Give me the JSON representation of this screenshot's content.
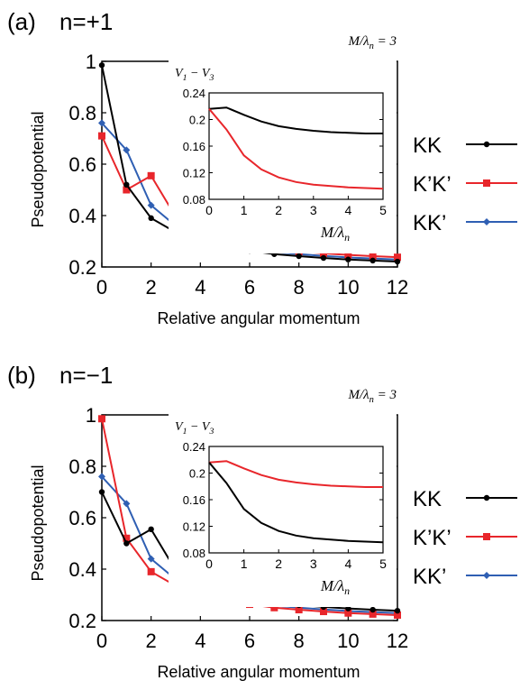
{
  "chart_data": [
    {
      "type": "line",
      "panel_label": "(a)",
      "title": "n=+1",
      "corner_annotation": "M/λ_n = 3",
      "xlabel": "Relative angular momentum",
      "ylabel": "Pseudopotential",
      "xlim": [
        0,
        12
      ],
      "ylim": [
        0.2,
        1.0
      ],
      "xticks": [
        "0",
        "2",
        "4",
        "6",
        "8",
        "10",
        "12"
      ],
      "yticks": [
        "0.2",
        "0.4",
        "0.6",
        "0.8",
        "1"
      ],
      "x": [
        0,
        1,
        2,
        3,
        4,
        5,
        6,
        7,
        8,
        9,
        10,
        11,
        12
      ],
      "series": [
        {
          "name": "KK",
          "color": "#000000",
          "marker": "circle",
          "values": [
            0.985,
            0.52,
            0.39,
            0.335,
            0.3,
            0.278,
            0.263,
            0.25,
            0.242,
            0.235,
            0.229,
            0.225,
            0.221
          ]
        },
        {
          "name": "K’K’",
          "color": "#e8262b",
          "marker": "square",
          "values": [
            0.71,
            0.5,
            0.555,
            0.395,
            0.34,
            0.305,
            0.285,
            0.27,
            0.26,
            0.253,
            0.247,
            0.242,
            0.238
          ]
        },
        {
          "name": "KK’",
          "color": "#2f5fb3",
          "marker": "diamond",
          "values": [
            0.76,
            0.655,
            0.44,
            0.36,
            0.315,
            0.288,
            0.27,
            0.258,
            0.25,
            0.243,
            0.237,
            0.233,
            0.229
          ]
        }
      ],
      "legend_placement": "right",
      "inset": {
        "ylabel": "V_1 − V_3",
        "xlabel": "M/λ_n",
        "xlim": [
          0,
          5
        ],
        "ylim": [
          0.08,
          0.24
        ],
        "xticks": [
          "0",
          "1",
          "2",
          "3",
          "4",
          "5"
        ],
        "yticks": [
          "0.08",
          "0.12",
          "0.16",
          "0.2",
          "0.24"
        ],
        "series": [
          {
            "color": "#000000",
            "points": [
              [
                0,
                0.216
              ],
              [
                0.5,
                0.218
              ],
              [
                1,
                0.207
              ],
              [
                1.5,
                0.197
              ],
              [
                2,
                0.19
              ],
              [
                2.5,
                0.186
              ],
              [
                3,
                0.183
              ],
              [
                3.5,
                0.181
              ],
              [
                4,
                0.18
              ],
              [
                4.5,
                0.179
              ],
              [
                5,
                0.179
              ]
            ]
          },
          {
            "color": "#e8262b",
            "points": [
              [
                0,
                0.216
              ],
              [
                0.5,
                0.185
              ],
              [
                1,
                0.146
              ],
              [
                1.5,
                0.125
              ],
              [
                2,
                0.113
              ],
              [
                2.5,
                0.106
              ],
              [
                3,
                0.102
              ],
              [
                3.5,
                0.1
              ],
              [
                4,
                0.098
              ],
              [
                4.5,
                0.097
              ],
              [
                5,
                0.096
              ]
            ]
          }
        ]
      }
    },
    {
      "type": "line",
      "panel_label": "(b)",
      "title": "n=−1",
      "corner_annotation": "M/λ_n = 3",
      "xlabel": "Relative angular momentum",
      "ylabel": "Pseudopotential",
      "xlim": [
        0,
        12
      ],
      "ylim": [
        0.2,
        1.0
      ],
      "xticks": [
        "0",
        "2",
        "4",
        "6",
        "8",
        "10",
        "12"
      ],
      "yticks": [
        "0.2",
        "0.4",
        "0.6",
        "0.8",
        "1"
      ],
      "x": [
        0,
        1,
        2,
        3,
        4,
        5,
        6,
        7,
        8,
        9,
        10,
        11,
        12
      ],
      "series": [
        {
          "name": "KK",
          "color": "#000000",
          "marker": "circle",
          "values": [
            0.7,
            0.5,
            0.555,
            0.395,
            0.34,
            0.305,
            0.285,
            0.27,
            0.26,
            0.253,
            0.247,
            0.242,
            0.238
          ]
        },
        {
          "name": "K’K’",
          "color": "#e8262b",
          "marker": "square",
          "values": [
            0.985,
            0.52,
            0.39,
            0.335,
            0.3,
            0.278,
            0.263,
            0.25,
            0.242,
            0.235,
            0.229,
            0.225,
            0.221
          ]
        },
        {
          "name": "KK’",
          "color": "#2f5fb3",
          "marker": "diamond",
          "values": [
            0.76,
            0.655,
            0.44,
            0.36,
            0.315,
            0.288,
            0.27,
            0.258,
            0.25,
            0.243,
            0.237,
            0.233,
            0.229
          ]
        }
      ],
      "legend_placement": "right",
      "inset": {
        "ylabel": "V_1 − V_3",
        "xlabel": "M/λ_n",
        "xlim": [
          0,
          5
        ],
        "ylim": [
          0.08,
          0.24
        ],
        "xticks": [
          "0",
          "1",
          "2",
          "3",
          "4",
          "5"
        ],
        "yticks": [
          "0.08",
          "0.12",
          "0.16",
          "0.2",
          "0.24"
        ],
        "series": [
          {
            "color": "#e8262b",
            "points": [
              [
                0,
                0.216
              ],
              [
                0.5,
                0.218
              ],
              [
                1,
                0.207
              ],
              [
                1.5,
                0.197
              ],
              [
                2,
                0.19
              ],
              [
                2.5,
                0.186
              ],
              [
                3,
                0.183
              ],
              [
                3.5,
                0.181
              ],
              [
                4,
                0.18
              ],
              [
                4.5,
                0.179
              ],
              [
                5,
                0.179
              ]
            ]
          },
          {
            "color": "#000000",
            "points": [
              [
                0,
                0.216
              ],
              [
                0.5,
                0.185
              ],
              [
                1,
                0.146
              ],
              [
                1.5,
                0.125
              ],
              [
                2,
                0.113
              ],
              [
                2.5,
                0.106
              ],
              [
                3,
                0.102
              ],
              [
                3.5,
                0.1
              ],
              [
                4,
                0.098
              ],
              [
                4.5,
                0.097
              ],
              [
                5,
                0.096
              ]
            ]
          }
        ]
      }
    }
  ]
}
